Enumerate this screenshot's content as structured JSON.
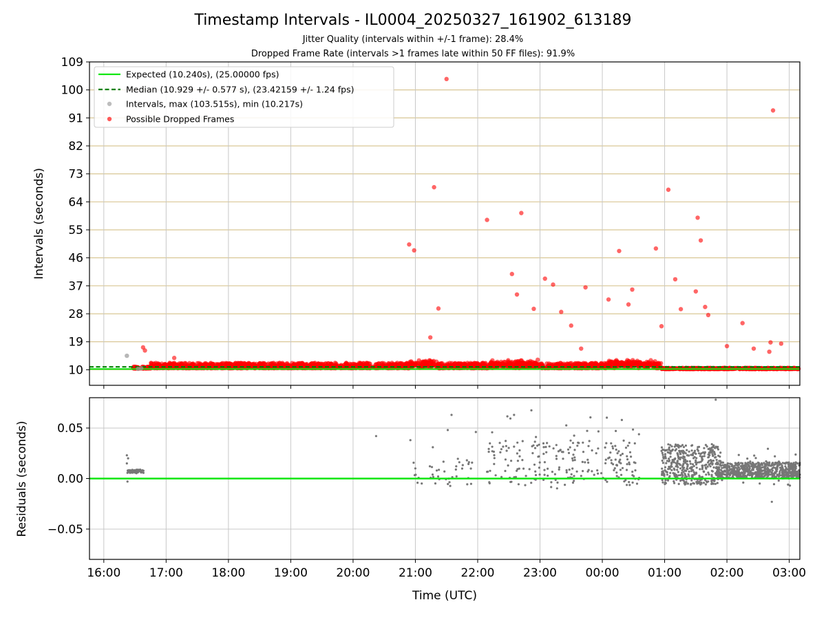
{
  "figure": {
    "title": "Timestamp Intervals - IL0004_20250327_161902_613189",
    "subtitle_jitter": "Jitter Quality (intervals within +/-1 frame): 28.4%",
    "subtitle_dropped": "Dropped Frame Rate (intervals >1 frames late within 50 FF files): 91.9%"
  },
  "chart_data": [
    {
      "type": "scatter",
      "ylabel": "Intervals (seconds)",
      "xlabel": "",
      "ylim": [
        5,
        109
      ],
      "y_ticks": [
        10,
        19,
        28,
        37,
        46,
        55,
        64,
        73,
        82,
        91,
        100,
        109
      ],
      "grid": "horizontal lines (tan) + vertical lines (gray)",
      "legend_position": "top-left",
      "expected": {
        "name": "Expected (10.240s), (25.00000 fps)",
        "y": 10.24,
        "color": "#10e610"
      },
      "median": {
        "name": "Median (10.929 +/- 0.577 s), (23.42159 +/- 1.24 fps)",
        "y": 10.929,
        "color": "#008000"
      },
      "intervals": {
        "name": "Intervals, max (103.515s), min (10.217s)",
        "color": "#999999",
        "points": [
          [
            16.37,
            14.5
          ],
          [
            16.55,
            10.3
          ],
          [
            16.6,
            10.5
          ]
        ]
      },
      "dropped": {
        "name": "Possible Dropped Frames",
        "color": "#ff0000",
        "points": [
          [
            16.63,
            17.2
          ],
          [
            16.66,
            16.2
          ],
          [
            17.13,
            13.8
          ],
          [
            20.9,
            50.3
          ],
          [
            20.98,
            48.4
          ],
          [
            21.24,
            20.4
          ],
          [
            21.3,
            68.7
          ],
          [
            21.37,
            29.7
          ],
          [
            21.5,
            103.5
          ],
          [
            22.15,
            58.2
          ],
          [
            22.55,
            40.8
          ],
          [
            22.63,
            34.2
          ],
          [
            22.7,
            60.4
          ],
          [
            22.9,
            29.6
          ],
          [
            23.08,
            39.3
          ],
          [
            23.21,
            37.4
          ],
          [
            23.34,
            28.6
          ],
          [
            23.5,
            24.2
          ],
          [
            23.66,
            16.8
          ],
          [
            23.73,
            36.5
          ],
          [
            24.1,
            32.6
          ],
          [
            24.27,
            48.2
          ],
          [
            24.42,
            31.0
          ],
          [
            24.48,
            35.8
          ],
          [
            24.86,
            49.0
          ],
          [
            24.95,
            24.0
          ],
          [
            25.06,
            67.9
          ],
          [
            25.17,
            39.1
          ],
          [
            25.26,
            29.5
          ],
          [
            25.5,
            35.2
          ],
          [
            25.53,
            58.9
          ],
          [
            25.58,
            51.6
          ],
          [
            25.65,
            30.2
          ],
          [
            25.7,
            27.6
          ],
          [
            26.0,
            17.6
          ],
          [
            26.25,
            25.0
          ],
          [
            26.43,
            16.8
          ],
          [
            26.68,
            15.8
          ],
          [
            26.7,
            18.8
          ],
          [
            26.74,
            93.4
          ],
          [
            26.87,
            18.4
          ]
        ]
      },
      "dense_band": {
        "description_segments": [
          [
            16.47,
            16.75,
            10.4,
            11.0
          ],
          [
            16.75,
            24.95,
            10.5,
            12.2
          ],
          [
            24.95,
            27.15,
            10.25,
            10.6
          ]
        ]
      }
    },
    {
      "type": "scatter",
      "ylabel": "Residuals (seconds)",
      "xlabel": "Time (UTC)",
      "ylim": [
        -0.08,
        0.08
      ],
      "y_ticks": [
        -0.05,
        0.0,
        0.05
      ],
      "y_tick_labels": [
        "−0.05",
        "0.00",
        "0.05"
      ],
      "zero_line_color": "#10e610",
      "point_color": "#777777",
      "grid": "both"
    }
  ],
  "x_axis": {
    "range": [
      15.77,
      27.17
    ],
    "ticks": [
      16,
      17,
      18,
      19,
      20,
      21,
      22,
      23,
      24,
      25,
      26,
      27
    ],
    "tick_labels": [
      "16:00",
      "17:00",
      "18:00",
      "19:00",
      "20:00",
      "21:00",
      "22:00",
      "23:00",
      "00:00",
      "01:00",
      "02:00",
      "03:00"
    ]
  }
}
